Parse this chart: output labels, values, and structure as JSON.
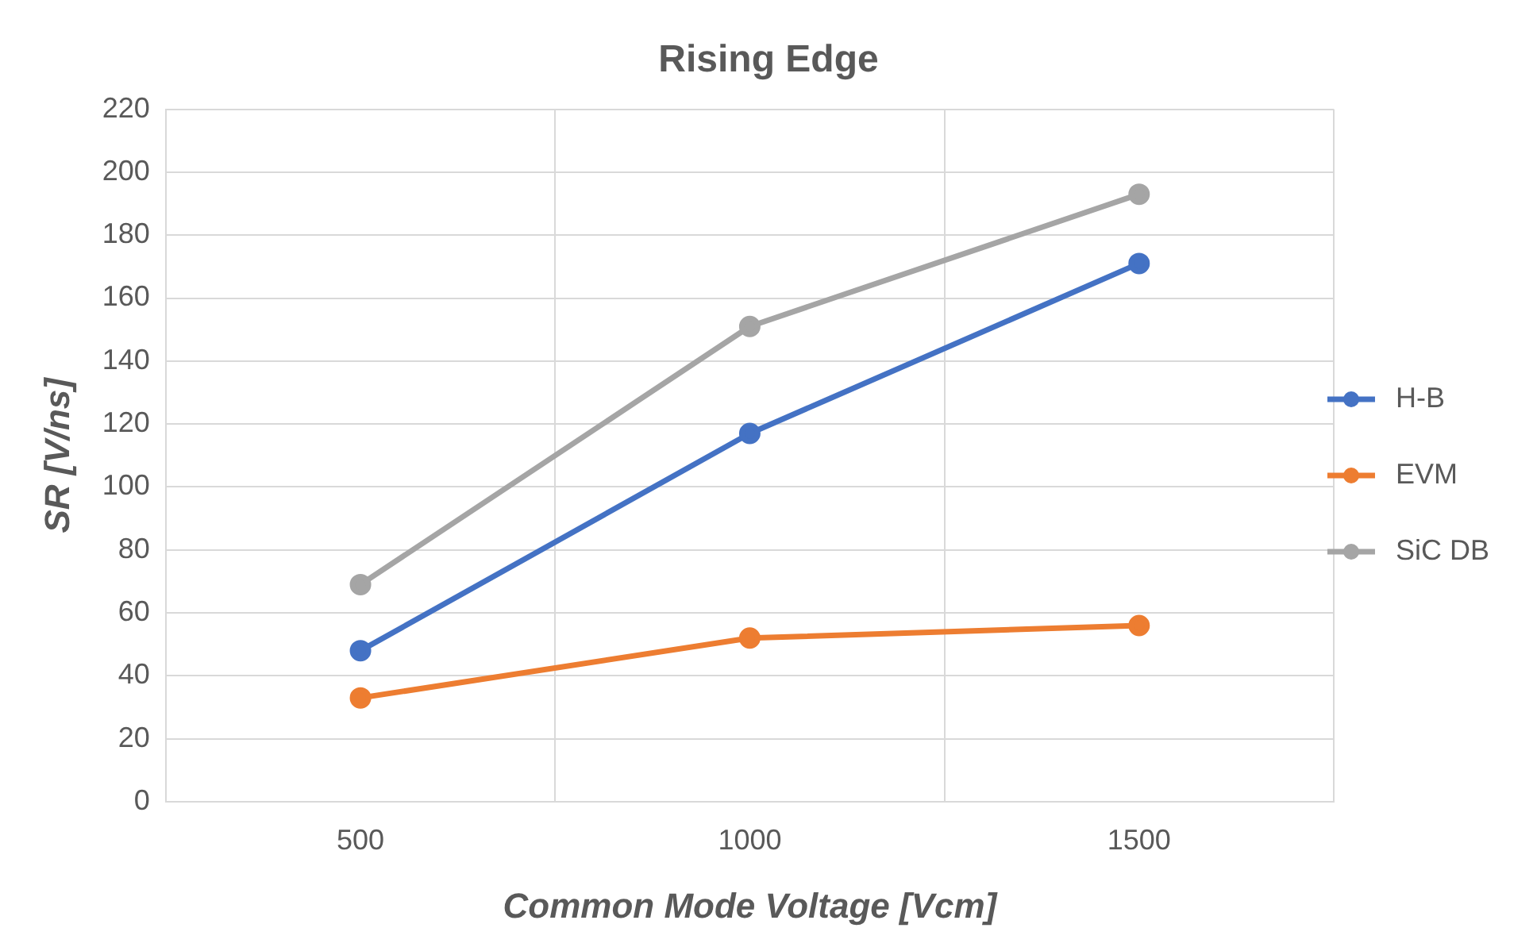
{
  "chart_data": {
    "type": "line",
    "title": "Rising Edge",
    "xlabel": "Common Mode Voltage [Vcm]",
    "ylabel": "SR [V/ns]",
    "categories": [
      "500",
      "1000",
      "1500"
    ],
    "series": [
      {
        "name": "H-B",
        "color": "#4472c4",
        "values": [
          48,
          117,
          171
        ]
      },
      {
        "name": "EVM",
        "color": "#ed7d31",
        "values": [
          33,
          52,
          56
        ]
      },
      {
        "name": "SiC DB",
        "color": "#a5a5a5",
        "values": [
          69,
          151,
          193
        ]
      }
    ],
    "ylim": [
      0,
      220
    ],
    "yticks": [
      0,
      20,
      40,
      60,
      80,
      100,
      120,
      140,
      160,
      180,
      200,
      220
    ],
    "grid": true,
    "legend": "right",
    "marker": "circle",
    "line_style": "solid"
  }
}
